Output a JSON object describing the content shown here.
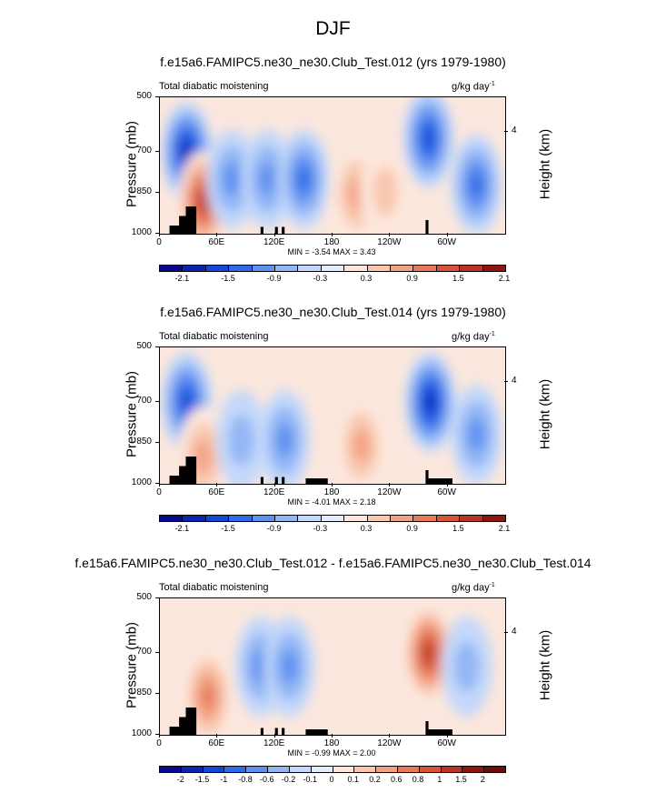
{
  "page_title": "DJF",
  "colors": {
    "palette": [
      "#08088a",
      "#0b26ae",
      "#1348d6",
      "#2f6ae8",
      "#5f91f0",
      "#93b6f5",
      "#c3d8fa",
      "#e3eefc",
      "#fde7dc",
      "#f9c7af",
      "#f3a184",
      "#e67a5a",
      "#d5543a",
      "#b93426",
      "#8e1510"
    ],
    "land": "#000000"
  },
  "chart_data": [
    {
      "type": "heatmap",
      "title": "f.e15a6.FAMIPC5.ne30_ne30.Club_Test.012 (yrs 1979-1980)",
      "left_label": "Total diabatic moistening",
      "units": "g/kg day",
      "units_exp": "-1",
      "ylabel": "Pressure (mb)",
      "ylabel_right": "Height (km)",
      "y_ticks": [
        "500",
        "700",
        "850",
        "1000"
      ],
      "y_right_ticks": [
        "4"
      ],
      "x_ticks": [
        "0",
        "60E",
        "120E",
        "180",
        "120W",
        "60W"
      ],
      "min_max": "MIN =  -3.54  MAX =  3.43",
      "colorbar_labels": [
        "-2.1",
        "-1.5",
        "-0.9",
        "-0.3",
        "0.3",
        "0.9",
        "1.5",
        "2.1"
      ],
      "ylim": [
        1000,
        500
      ],
      "xlim": [
        0,
        360
      ],
      "features": [
        {
          "lon": 28,
          "p": 700,
          "v": -3.2
        },
        {
          "lon": 45,
          "p": 880,
          "v": 3.0
        },
        {
          "lon": 75,
          "p": 800,
          "v": -1.5
        },
        {
          "lon": 112,
          "p": 800,
          "v": -1.6
        },
        {
          "lon": 150,
          "p": 800,
          "v": -1.9
        },
        {
          "lon": 205,
          "p": 855,
          "v": 1.7
        },
        {
          "lon": 235,
          "p": 845,
          "v": 1.2
        },
        {
          "lon": 280,
          "p": 650,
          "v": -2.8
        },
        {
          "lon": 330,
          "p": 820,
          "v": -2.0
        }
      ]
    },
    {
      "type": "heatmap",
      "title": "f.e15a6.FAMIPC5.ne30_ne30.Club_Test.014 (yrs 1979-1980)",
      "left_label": "Total diabatic moistening",
      "units": "g/kg day",
      "units_exp": "-1",
      "ylabel": "Pressure (mb)",
      "ylabel_right": "Height (km)",
      "y_ticks": [
        "500",
        "700",
        "850",
        "1000"
      ],
      "y_right_ticks": [
        "4"
      ],
      "x_ticks": [
        "0",
        "60E",
        "120E",
        "180",
        "120W",
        "60W"
      ],
      "min_max": "MIN =  -4.01  MAX =  2.18",
      "colorbar_labels": [
        "-2.1",
        "-1.5",
        "-0.9",
        "-0.3",
        "0.3",
        "0.9",
        "1.5",
        "2.1"
      ],
      "ylim": [
        1000,
        500
      ],
      "xlim": [
        0,
        360
      ],
      "features": [
        {
          "lon": 28,
          "p": 700,
          "v": -3.0
        },
        {
          "lon": 45,
          "p": 900,
          "v": 1.5
        },
        {
          "lon": 85,
          "p": 840,
          "v": -1.4
        },
        {
          "lon": 130,
          "p": 840,
          "v": -1.6
        },
        {
          "lon": 210,
          "p": 860,
          "v": 1.8
        },
        {
          "lon": 282,
          "p": 700,
          "v": -3.5
        },
        {
          "lon": 330,
          "p": 820,
          "v": -1.8
        }
      ]
    },
    {
      "type": "heatmap",
      "title": "f.e15a6.FAMIPC5.ne30_ne30.Club_Test.012 - f.e15a6.FAMIPC5.ne30_ne30.Club_Test.014",
      "left_label": "Total diabatic moistening",
      "units": "g/kg day",
      "units_exp": "-1",
      "ylabel": "Pressure (mb)",
      "ylabel_right": "Height (km)",
      "y_ticks": [
        "500",
        "700",
        "850",
        "1000"
      ],
      "y_right_ticks": [
        "4"
      ],
      "x_ticks": [
        "0",
        "60E",
        "120E",
        "180",
        "120W",
        "60W"
      ],
      "min_max": "MIN =  -0.99  MAX =  2.00",
      "colorbar_labels": [
        "-2",
        "-1.5",
        "-1",
        "-0.8",
        "-0.6",
        "-0.2",
        "-0.1",
        "0",
        "0.1",
        "0.2",
        "0.6",
        "0.8",
        "1",
        "1.5",
        "2"
      ],
      "ylim": [
        1000,
        500
      ],
      "xlim": [
        0,
        360
      ],
      "features": [
        {
          "lon": 50,
          "p": 860,
          "v": 0.8
        },
        {
          "lon": 105,
          "p": 750,
          "v": -0.6
        },
        {
          "lon": 135,
          "p": 750,
          "v": -0.5
        },
        {
          "lon": 210,
          "p": 800,
          "v": 0.2
        },
        {
          "lon": 280,
          "p": 700,
          "v": 1.2
        },
        {
          "lon": 320,
          "p": 750,
          "v": -0.4
        }
      ]
    }
  ]
}
